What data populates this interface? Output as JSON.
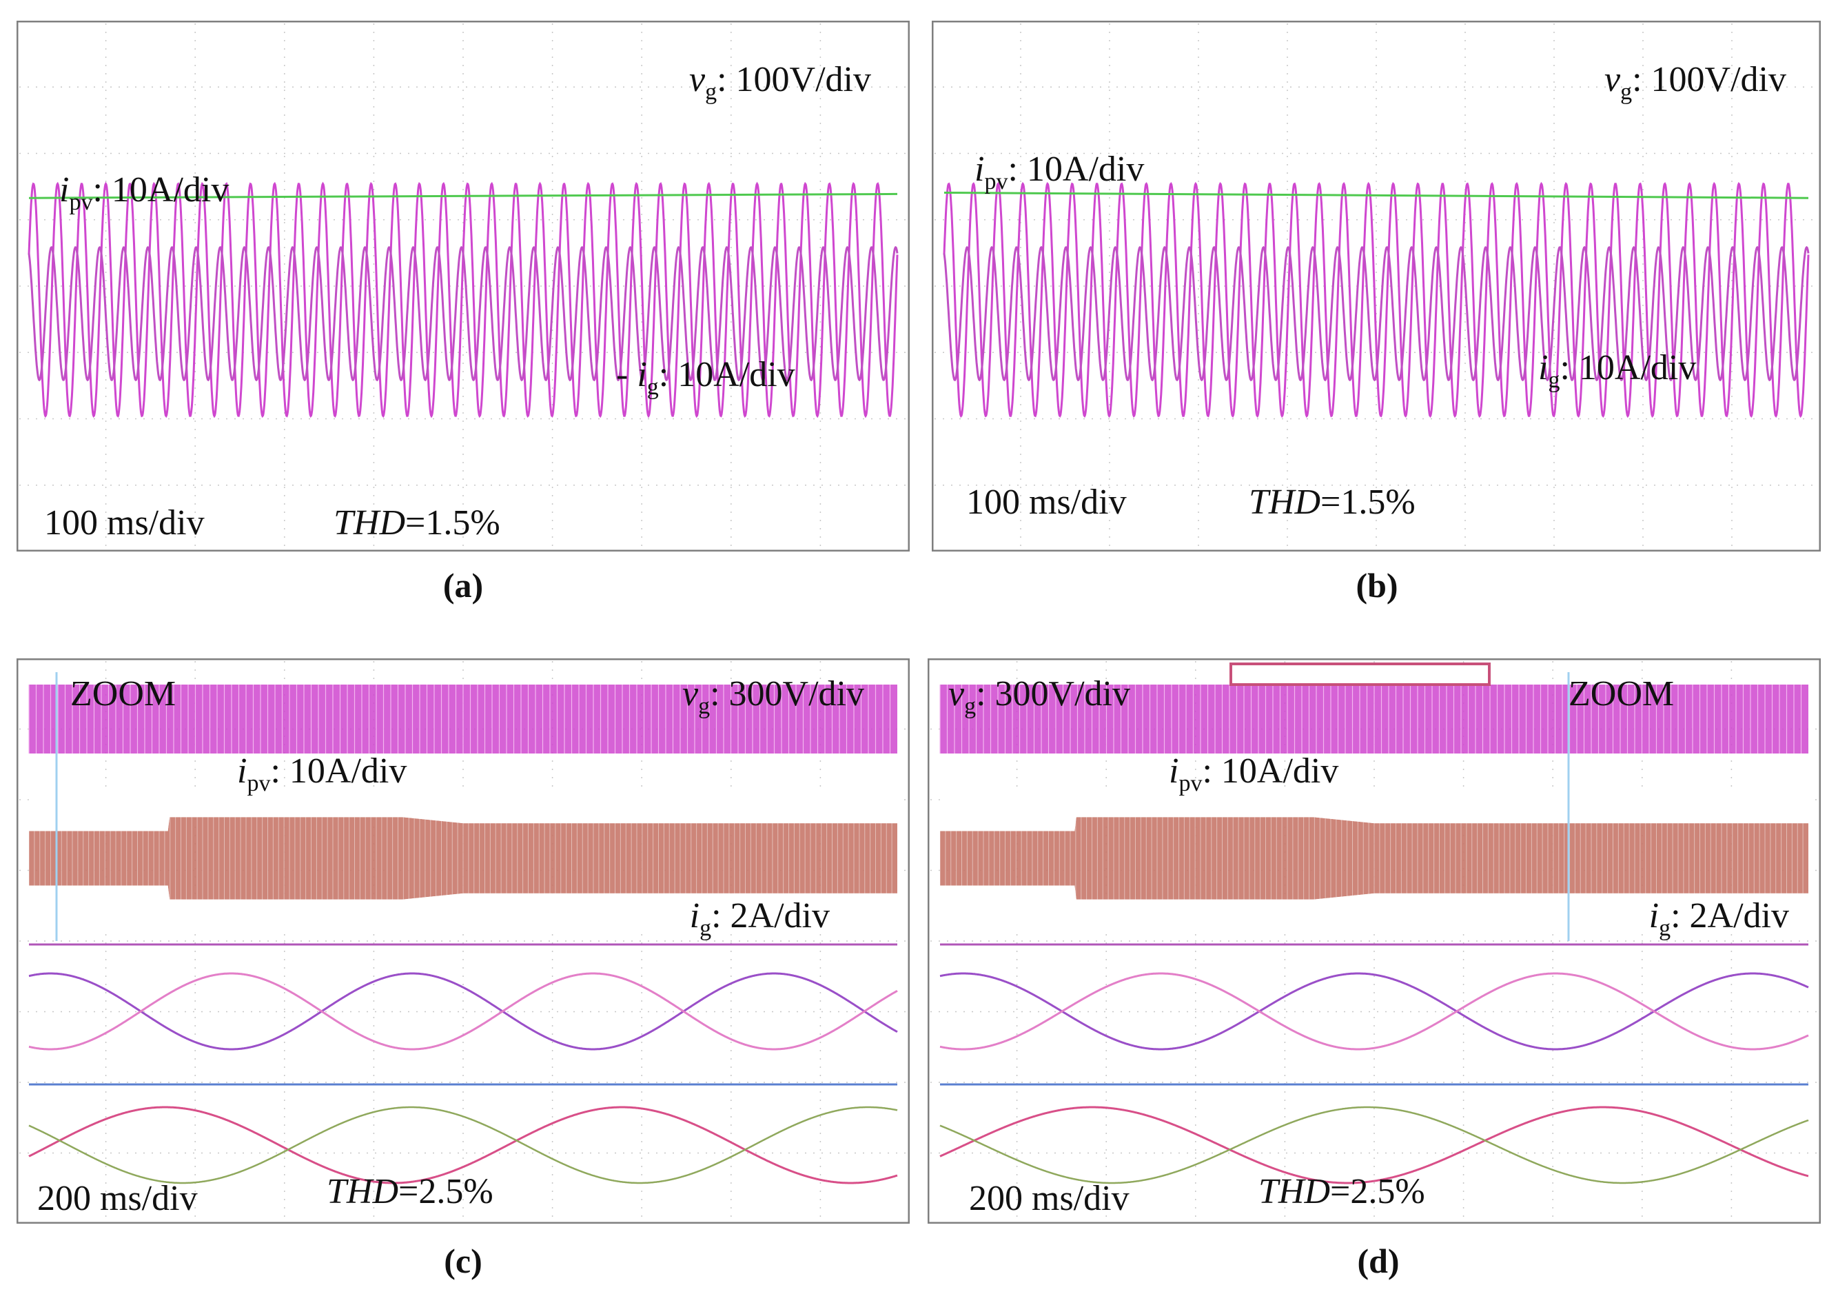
{
  "colors": {
    "frame": "#7f7f7f",
    "grid": "#c7c7c7",
    "vg": "#cf47cf",
    "ig": "#c04fc4",
    "ipv": "#4fc94f",
    "ipv_blue": "#4a78d8",
    "ig_fill": "#c8786a",
    "phase_a": "#9a4fc8",
    "phase_b": "#e37fc8",
    "phase_c": "#d84f88",
    "phase_d": "#8fa85c",
    "marker": "#a0d0f0",
    "zoom_box": "#c8507a"
  },
  "chart_data": [
    {
      "id": "a",
      "type": "line",
      "caption": "(a)",
      "labels": {
        "vg_sym": "v",
        "vg_sub": "g",
        "vg_scale": ": 100V/div",
        "ipv_sym": "i",
        "ipv_sub": "pv",
        "ipv_scale": ": 10A/div",
        "ig_prefix": "- ",
        "ig_sym": "i",
        "ig_sub": "g",
        "ig_scale": ": 10A/div",
        "time": "100 ms/div",
        "thd_name": "THD",
        "thd_value": "=1.5%"
      },
      "series": [
        {
          "name": "v_g",
          "cycles": 36,
          "amplitude_div": 1.75,
          "offset_div": -1.2
        },
        {
          "name": "i_g",
          "cycles": 36,
          "amplitude_div": 1.0,
          "offset_div": -0.8
        },
        {
          "name": "i_pv",
          "start_div": 2.8,
          "end_div": 2.95
        }
      ]
    },
    {
      "id": "b",
      "type": "line",
      "caption": "(b)",
      "labels": {
        "vg_sym": "v",
        "vg_sub": "g",
        "vg_scale": ": 100V/div",
        "ipv_sym": "i",
        "ipv_sub": "pv",
        "ipv_scale": ": 10A/div",
        "ig_sym": "i",
        "ig_sub": "g",
        "ig_scale": ": 10A/div",
        "time": "100 ms/div",
        "thd_name": "THD",
        "thd_value": "=1.5%"
      },
      "series": [
        {
          "name": "v_g",
          "cycles": 35,
          "amplitude_div": 1.75,
          "offset_div": -1.2
        },
        {
          "name": "i_g",
          "cycles": 35,
          "amplitude_div": 1.0,
          "offset_div": -0.8
        },
        {
          "name": "i_pv",
          "start_div": 3.0,
          "end_div": 2.8
        }
      ]
    },
    {
      "id": "c",
      "type": "line",
      "caption": "(c)",
      "labels": {
        "zoom": "ZOOM",
        "vg_sym": "v",
        "vg_sub": "g",
        "vg_scale": ": 300V/div",
        "ipv_sym": "i",
        "ipv_sub": "pv",
        "ipv_scale": ": 10A/div",
        "ig_sym": "i",
        "ig_sub": "g",
        "ig_scale": ": 2A/div",
        "time": "200 ms/div",
        "thd_name": "THD",
        "thd_value": "=2.5%"
      },
      "envelope": {
        "time_div": [
          0,
          1.6,
          1.62,
          4.3,
          5.0,
          10
        ],
        "half_height_div": [
          0.45,
          0.45,
          0.68,
          0.68,
          0.58,
          0.58
        ]
      },
      "zoom_upper_cycles": 2.4,
      "zoom_lower_cycles": 1.9
    },
    {
      "id": "d",
      "type": "line",
      "caption": "(d)",
      "labels": {
        "zoom": "ZOOM",
        "vg_sym": "v",
        "vg_sub": "g",
        "vg_scale": ": 300V/div",
        "ipv_sym": "i",
        "ipv_sub": "pv",
        "ipv_scale": ": 10A/div",
        "ig_sym": "i",
        "ig_sub": "g",
        "ig_scale": ": 2A/div",
        "time": "200 ms/div",
        "thd_name": "THD",
        "thd_value": "=2.5%"
      },
      "envelope": {
        "time_div": [
          0,
          1.55,
          1.57,
          4.3,
          5.0,
          10
        ],
        "half_height_div": [
          0.45,
          0.45,
          0.68,
          0.68,
          0.58,
          0.58
        ]
      },
      "zoom_upper_cycles": 2.2,
      "zoom_lower_cycles": 1.7
    }
  ]
}
